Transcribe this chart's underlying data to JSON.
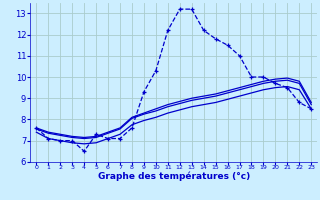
{
  "xlabel": "Graphe des températures (°c)",
  "bg_color": "#cceeff",
  "grid_color": "#aacccc",
  "line_color": "#0000cc",
  "xlim": [
    0,
    23
  ],
  "ylim": [
    6,
    13.5
  ],
  "xticks": [
    0,
    1,
    2,
    3,
    4,
    5,
    6,
    7,
    8,
    9,
    10,
    11,
    12,
    13,
    14,
    15,
    16,
    17,
    18,
    19,
    20,
    21,
    22,
    23
  ],
  "yticks": [
    6,
    7,
    8,
    9,
    10,
    11,
    12,
    13
  ],
  "hours": [
    0,
    1,
    2,
    3,
    4,
    5,
    6,
    7,
    8,
    9,
    10,
    11,
    12,
    13,
    14,
    15,
    16,
    17,
    18,
    19,
    20,
    21,
    22,
    23
  ],
  "temp_main": [
    7.6,
    7.1,
    7.0,
    7.0,
    6.5,
    7.3,
    7.1,
    7.1,
    7.6,
    9.3,
    10.3,
    12.2,
    13.2,
    13.2,
    12.2,
    11.8,
    11.5,
    11.0,
    10.0,
    10.0,
    9.7,
    9.5,
    8.8,
    8.5
  ],
  "temp_line2": [
    7.6,
    7.4,
    7.3,
    7.2,
    7.15,
    7.2,
    7.4,
    7.6,
    8.1,
    8.3,
    8.5,
    8.7,
    8.85,
    9.0,
    9.1,
    9.2,
    9.35,
    9.5,
    9.65,
    9.8,
    9.9,
    9.95,
    9.8,
    8.8
  ],
  "temp_line3": [
    7.55,
    7.35,
    7.25,
    7.15,
    7.1,
    7.15,
    7.35,
    7.55,
    8.05,
    8.25,
    8.4,
    8.6,
    8.75,
    8.9,
    9.0,
    9.1,
    9.25,
    9.4,
    9.55,
    9.7,
    9.8,
    9.85,
    9.7,
    8.7
  ],
  "temp_line4": [
    7.4,
    7.1,
    7.0,
    6.9,
    6.85,
    6.9,
    7.1,
    7.3,
    7.75,
    7.95,
    8.1,
    8.3,
    8.45,
    8.6,
    8.7,
    8.8,
    8.95,
    9.1,
    9.25,
    9.4,
    9.5,
    9.55,
    9.4,
    8.5
  ]
}
